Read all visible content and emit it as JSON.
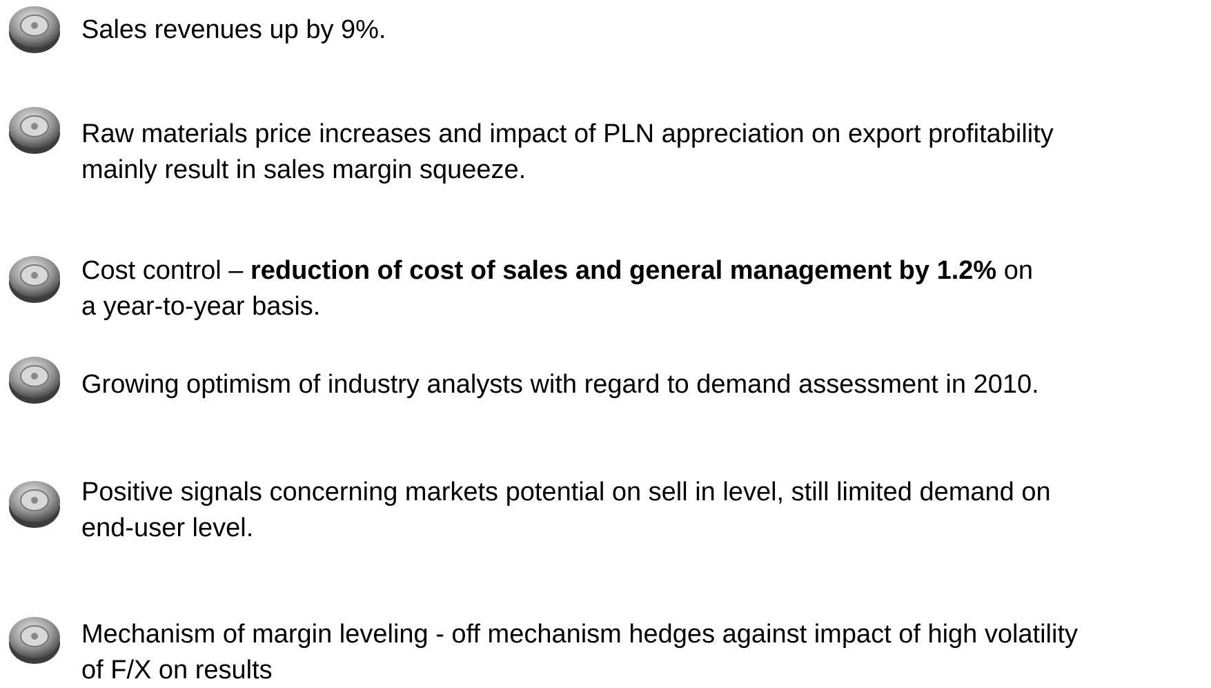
{
  "items": [
    {
      "lines": [
        "Sales revenues up by 9%."
      ]
    },
    {
      "lines": [
        "Raw materials price increases and impact of PLN appreciation on export profitability",
        "mainly result in sales margin squeeze."
      ]
    },
    {
      "lines": [
        [
          {
            "text": "Cost control – "
          },
          {
            "text": "reduction of cost of sales and general management by 1.2%",
            "bold": true
          },
          {
            "text": " on"
          }
        ],
        "a year-to-year basis."
      ]
    },
    {
      "lines": [
        "Growing optimism of industry analysts with regard to demand assessment in 2010."
      ]
    },
    {
      "lines": [
        "Positive signals concerning markets potential on sell in level, still limited demand on",
        "end-user level."
      ]
    },
    {
      "lines": [
        "Mechanism of margin leveling - off mechanism hedges against impact of high volatility",
        "of F/X on results"
      ]
    }
  ]
}
